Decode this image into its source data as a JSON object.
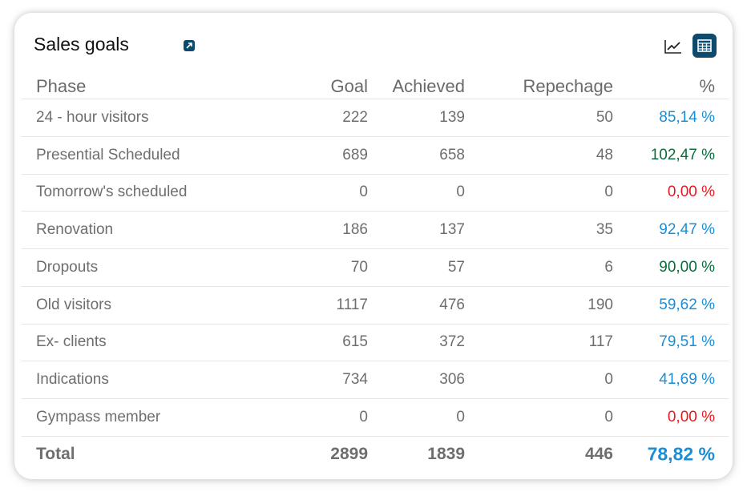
{
  "header": {
    "title": "Sales goals",
    "icons": [
      "external-link-icon",
      "line-chart-icon",
      "table-icon"
    ]
  },
  "colors": {
    "blue": "#1b8ed3",
    "green": "#0a6b3c",
    "red": "#e8191f",
    "brand": "#0d4a6b"
  },
  "table": {
    "columns": [
      "Phase",
      "Goal",
      "Achieved",
      "Repechage",
      "%"
    ],
    "rows": [
      {
        "phase": "24 - hour visitors",
        "goal": "222",
        "achieved": "139",
        "repechage": "50",
        "pct": "85,14 %",
        "status": "blue"
      },
      {
        "phase": "Presential Scheduled",
        "goal": "689",
        "achieved": "658",
        "repechage": "48",
        "pct": "102,47 %",
        "status": "green"
      },
      {
        "phase": "Tomorrow's scheduled",
        "goal": "0",
        "achieved": "0",
        "repechage": "0",
        "pct": "0,00 %",
        "status": "red"
      },
      {
        "phase": "Renovation",
        "goal": "186",
        "achieved": "137",
        "repechage": "35",
        "pct": "92,47 %",
        "status": "blue"
      },
      {
        "phase": "Dropouts",
        "goal": "70",
        "achieved": "57",
        "repechage": "6",
        "pct": "90,00 %",
        "status": "green"
      },
      {
        "phase": "Old visitors",
        "goal": "1117",
        "achieved": "476",
        "repechage": "190",
        "pct": "59,62 %",
        "status": "blue"
      },
      {
        "phase": "Ex- clients",
        "goal": "615",
        "achieved": "372",
        "repechage": "117",
        "pct": "79,51 %",
        "status": "blue"
      },
      {
        "phase": "Indications",
        "goal": "734",
        "achieved": "306",
        "repechage": "0",
        "pct": "41,69 %",
        "status": "blue"
      },
      {
        "phase": "Gympass member",
        "goal": "0",
        "achieved": "0",
        "repechage": "0",
        "pct": "0,00 %",
        "status": "red"
      }
    ],
    "total": {
      "phase": "Total",
      "goal": "2899",
      "achieved": "1839",
      "repechage": "446",
      "pct": "78,82 %",
      "status": "blue"
    }
  }
}
